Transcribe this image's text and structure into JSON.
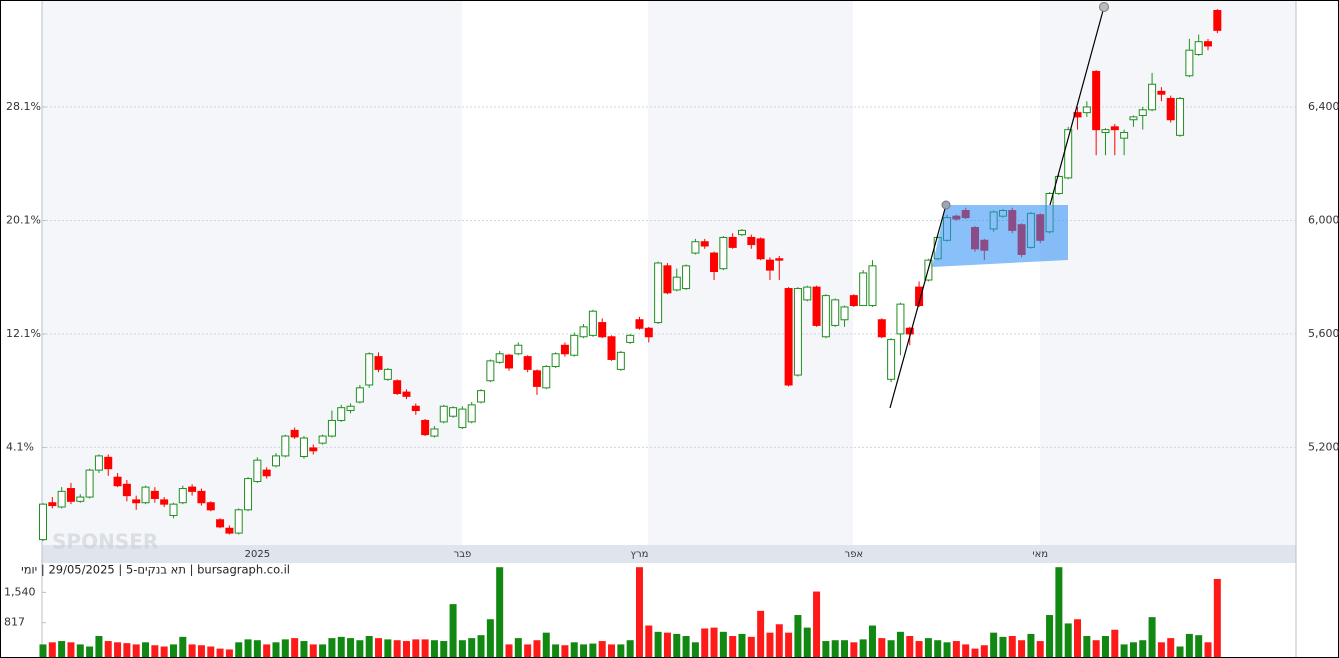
{
  "chart_data": {
    "type": "candlestick",
    "title": "bursagraph.co.il | תא בנקים-5 | 29/05/2025 | יומי",
    "watermark": "SPONSER",
    "categories": [
      null,
      null,
      null,
      null,
      null,
      null,
      null,
      null,
      null,
      null,
      null,
      null,
      null,
      null,
      null,
      null,
      null,
      null,
      null,
      null,
      null,
      null,
      null,
      "2025",
      null,
      null,
      null,
      null,
      null,
      null,
      null,
      null,
      null,
      null,
      null,
      null,
      null,
      null,
      null,
      null,
      null,
      null,
      null,
      null,
      null,
      "פבר",
      null,
      null,
      null,
      null,
      null,
      null,
      null,
      null,
      null,
      null,
      null,
      null,
      null,
      null,
      null,
      null,
      null,
      null,
      "מרץ",
      null,
      null,
      null,
      null,
      null,
      null,
      null,
      null,
      null,
      null,
      null,
      null,
      null,
      null,
      null,
      null,
      null,
      null,
      null,
      null,
      null,
      null,
      "אפר",
      null,
      null,
      null,
      null,
      null,
      null,
      null,
      null,
      null,
      null,
      null,
      null,
      null,
      null,
      null,
      null,
      null,
      null,
      null,
      "מאי",
      null,
      null,
      null,
      null,
      null,
      null,
      null,
      null,
      null,
      null,
      null,
      null,
      null,
      null,
      null,
      null,
      null,
      null,
      null
    ],
    "open": [
      4875,
      5005,
      4990,
      5055,
      5010,
      5025,
      5120,
      5165,
      5095,
      5070,
      5015,
      5005,
      5045,
      5015,
      4960,
      5005,
      5060,
      5045,
      5005,
      4945,
      4915,
      4898,
      4980,
      5080,
      5120,
      5135,
      5170,
      5260,
      5168,
      5198,
      5215,
      5240,
      5295,
      5330,
      5360,
      5420,
      5520,
      5440,
      5435,
      5395,
      5345,
      5295,
      5240,
      5290,
      5310,
      5270,
      5290,
      5360,
      5435,
      5500,
      5525,
      5530,
      5520,
      5470,
      5410,
      5485,
      5560,
      5525,
      5590,
      5595,
      5640,
      5590,
      5475,
      5570,
      5650,
      5620,
      5640,
      5840,
      5755,
      5760,
      5885,
      5925,
      5885,
      5830,
      5940,
      5950,
      5940,
      5935,
      5860,
      5865,
      5760,
      5455,
      5720,
      5765,
      5590,
      5630,
      5650,
      5735,
      5700,
      5700,
      5650,
      5440,
      5600,
      5620,
      5765,
      5790,
      5865,
      5930,
      6015,
      6035,
      5975,
      5930,
      5970,
      6015,
      6035,
      5985,
      5905,
      6020,
      5960,
      6095,
      6150,
      6380,
      6380,
      6525,
      6310,
      6330,
      6290,
      6355,
      6370,
      6390,
      6455,
      6430,
      6300,
      6510,
      6585,
      6630,
      6740
    ],
    "high": [
      5003,
      5025,
      5060,
      5075,
      5035,
      5125,
      5175,
      5175,
      5110,
      5085,
      5030,
      5065,
      5060,
      5025,
      5005,
      5065,
      5070,
      5055,
      5010,
      4950,
      4925,
      4985,
      5095,
      5165,
      5130,
      5180,
      5245,
      5270,
      5240,
      5210,
      5245,
      5330,
      5350,
      5355,
      5420,
      5535,
      5535,
      5480,
      5440,
      5405,
      5355,
      5300,
      5275,
      5350,
      5345,
      5345,
      5360,
      5405,
      5510,
      5540,
      5530,
      5570,
      5525,
      5475,
      5490,
      5535,
      5570,
      5605,
      5635,
      5685,
      5655,
      5595,
      5540,
      5600,
      5660,
      5625,
      5855,
      5850,
      5830,
      5845,
      5935,
      5935,
      5890,
      5945,
      5955,
      5970,
      5950,
      5940,
      5870,
      5875,
      5765,
      5765,
      5770,
      5770,
      5740,
      5725,
      5700,
      5740,
      5825,
      5860,
      5655,
      5585,
      5710,
      5625,
      5785,
      5865,
      5945,
      6020,
      6020,
      6045,
      5980,
      5935,
      6035,
      6040,
      6045,
      5990,
      6030,
      6025,
      6100,
      6160,
      6330,
      6400,
      6420,
      6530,
      6325,
      6340,
      6320,
      6370,
      6400,
      6520,
      6470,
      6440,
      6435,
      6640,
      6655,
      6640,
      6745
    ],
    "low": [
      4870,
      4985,
      4985,
      5000,
      5005,
      5020,
      5110,
      5100,
      5060,
      5010,
      4980,
      5000,
      5005,
      4990,
      4950,
      5000,
      5030,
      4995,
      4975,
      4915,
      4893,
      4893,
      4975,
      5075,
      5090,
      5130,
      5165,
      5230,
      5160,
      5175,
      5210,
      5235,
      5290,
      5320,
      5355,
      5410,
      5465,
      5435,
      5385,
      5370,
      5315,
      5240,
      5235,
      5285,
      5305,
      5265,
      5285,
      5355,
      5430,
      5495,
      5470,
      5525,
      5465,
      5385,
      5405,
      5480,
      5520,
      5520,
      5585,
      5590,
      5585,
      5505,
      5470,
      5565,
      5615,
      5570,
      5635,
      5740,
      5750,
      5755,
      5880,
      5900,
      5790,
      5825,
      5900,
      5945,
      5900,
      5860,
      5790,
      5790,
      5415,
      5450,
      5715,
      5625,
      5585,
      5625,
      5625,
      5695,
      5715,
      5695,
      5585,
      5430,
      5525,
      5560,
      5695,
      5785,
      5860,
      5925,
      6000,
      6005,
      5890,
      5860,
      5960,
      6010,
      5955,
      5870,
      5900,
      5920,
      5955,
      6090,
      6145,
      6320,
      6365,
      6230,
      6230,
      6230,
      6230,
      6330,
      6320,
      6385,
      6420,
      6345,
      6295,
      6505,
      6580,
      6600,
      6660
    ],
    "close": [
      5000,
      4995,
      5045,
      5010,
      5025,
      5120,
      5170,
      5125,
      5065,
      5030,
      5005,
      5060,
      5020,
      5000,
      5000,
      5055,
      5045,
      5005,
      4980,
      4920,
      4898,
      4980,
      5090,
      5155,
      5100,
      5170,
      5240,
      5237,
      5233,
      5188,
      5240,
      5295,
      5340,
      5345,
      5410,
      5530,
      5475,
      5475,
      5390,
      5380,
      5330,
      5245,
      5265,
      5345,
      5340,
      5335,
      5350,
      5400,
      5505,
      5530,
      5480,
      5560,
      5475,
      5415,
      5485,
      5530,
      5530,
      5595,
      5625,
      5680,
      5590,
      5510,
      5535,
      5595,
      5620,
      5590,
      5850,
      5745,
      5800,
      5840,
      5925,
      5910,
      5820,
      5940,
      5905,
      5965,
      5915,
      5865,
      5825,
      5860,
      5420,
      5760,
      5765,
      5630,
      5735,
      5720,
      5695,
      5700,
      5815,
      5840,
      5590,
      5580,
      5705,
      5600,
      5700,
      5860,
      5940,
      6010,
      6005,
      6010,
      5900,
      5895,
      6030,
      6035,
      5965,
      5880,
      6025,
      5930,
      6095,
      6155,
      6320,
      6365,
      6400,
      6320,
      6320,
      6320,
      6310,
      6365,
      6390,
      6480,
      6445,
      6355,
      6430,
      6600,
      6630,
      6615,
      6670
    ],
    "volume": [
      300,
      350,
      380,
      350,
      300,
      250,
      500,
      380,
      350,
      330,
      300,
      350,
      280,
      250,
      300,
      480,
      300,
      280,
      250,
      200,
      180,
      350,
      420,
      400,
      300,
      350,
      420,
      450,
      380,
      300,
      300,
      450,
      480,
      450,
      400,
      500,
      450,
      420,
      400,
      380,
      420,
      420,
      400,
      380,
      1260,
      400,
      450,
      520,
      900,
      2140,
      300,
      450,
      300,
      400,
      580,
      300,
      280,
      350,
      300,
      320,
      380,
      300,
      300,
      400,
      2140,
      750,
      600,
      580,
      550,
      500,
      350,
      680,
      700,
      600,
      500,
      550,
      480,
      1100,
      580,
      780,
      580,
      1000,
      700,
      1560,
      380,
      400,
      400,
      350,
      420,
      750,
      450,
      400,
      600,
      500,
      380,
      450,
      400,
      350,
      380,
      300,
      200,
      280,
      580,
      480,
      500,
      400,
      550,
      380,
      1000,
      2140,
      800,
      900,
      500,
      400,
      500,
      650,
      300,
      350,
      400,
      950,
      350,
      450,
      250,
      550,
      520,
      350,
      1860
    ],
    "up_color": "#1f8f1f",
    "down_color": "#ff0000",
    "volume_up_color": "#118811",
    "volume_down_color": "#ff1a1a",
    "ylim": [
      4856,
      6777
    ],
    "yticks": [
      {
        "value": 5200,
        "label": "5,200"
      },
      {
        "value": 5600,
        "label": "5,600"
      },
      {
        "value": 6000,
        "label": "6,000"
      },
      {
        "value": 6400,
        "label": "6,400"
      }
    ],
    "y2lim": [
      -2.77,
      35.64
    ],
    "y2ticks": [
      {
        "value": 4.1,
        "label": "4.1%"
      },
      {
        "value": 12.1,
        "label": "12.1%"
      },
      {
        "value": 20.1,
        "label": "20.1%"
      },
      {
        "value": 28.1,
        "label": "28.1%"
      }
    ],
    "vlim": [
      0,
      2240
    ],
    "vticks": [
      817,
      {
        "value": 1540,
        "label": "1,540"
      }
    ],
    "grid": true
  }
}
